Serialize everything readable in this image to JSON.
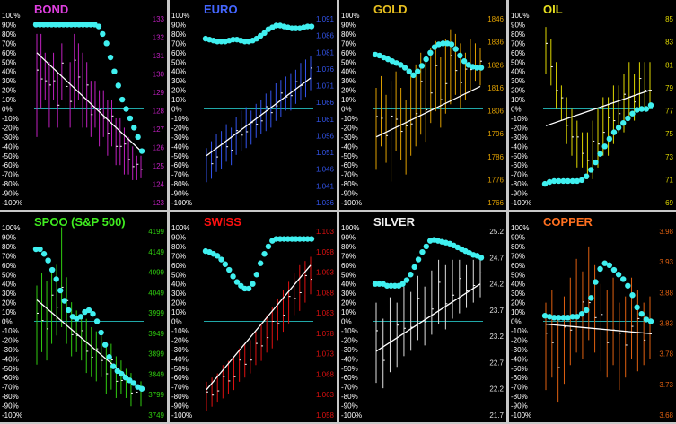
{
  "chart_data": [
    {
      "type": "bar",
      "title": "BOND",
      "title_color": "#e040e0",
      "bar_color": "#c020c0",
      "pct_ticks": [
        "100%",
        "90%",
        "80%",
        "70%",
        "60%",
        "50%",
        "40%",
        "30%",
        "20%",
        "10%",
        "0%",
        "-10%",
        "-20%",
        "-30%",
        "-40%",
        "-50%",
        "-60%",
        "-70%",
        "-80%",
        "-90%",
        "-100%"
      ],
      "right_ticks": [
        "133",
        "132",
        "131",
        "130",
        "129",
        "128",
        "127",
        "126",
        "125",
        "124",
        "123"
      ],
      "price_range": [
        123,
        133
      ],
      "bars": [
        [
          126.5,
          132
        ],
        [
          128,
          132
        ],
        [
          128.5,
          131
        ],
        [
          127,
          130.5
        ],
        [
          128.5,
          131
        ],
        [
          127,
          130
        ],
        [
          128.5,
          131.5
        ],
        [
          128,
          131
        ],
        [
          127,
          130.5
        ],
        [
          128,
          132
        ],
        [
          128.5,
          131.5
        ],
        [
          127,
          131
        ],
        [
          127,
          130.5
        ],
        [
          126.5,
          129.5
        ],
        [
          127,
          129.5
        ],
        [
          126,
          129
        ],
        [
          126.5,
          129
        ],
        [
          125.5,
          128.5
        ],
        [
          126,
          128.5
        ],
        [
          125,
          127.5
        ],
        [
          125,
          127.5
        ],
        [
          124.5,
          127
        ],
        [
          124.5,
          126.5
        ],
        [
          124.2,
          126
        ],
        [
          124.2,
          125.5
        ],
        [
          124.3,
          125.5
        ]
      ],
      "trend_pct": [
        60,
        -45
      ],
      "dots_pct": [
        90,
        90,
        90,
        90,
        90,
        90,
        90,
        90,
        90,
        90,
        90,
        90,
        90,
        90,
        90,
        90,
        88,
        80,
        70,
        55,
        40,
        25,
        10,
        0,
        -10,
        -20,
        -30,
        -45
      ]
    },
    {
      "type": "bar",
      "title": "EURO",
      "title_color": "#4466ff",
      "bar_color": "#3355ee",
      "pct_ticks": [
        "100%",
        "90%",
        "80%",
        "70%",
        "60%",
        "50%",
        "40%",
        "30%",
        "20%",
        "10%",
        "0%",
        "-10%",
        "-20%",
        "-30%",
        "-40%",
        "-50%",
        "-60%",
        "-70%",
        "-80%",
        "-90%",
        "-100%"
      ],
      "right_ticks": [
        "1.091",
        "1.086",
        "1.081",
        "1.076",
        "1.071",
        "1.066",
        "1.061",
        "1.056",
        "1.051",
        "1.046",
        "1.041",
        "1.036"
      ],
      "price_range": [
        1.036,
        1.091
      ],
      "bars": [
        [
          1.042,
          1.052
        ],
        [
          1.043,
          1.054
        ],
        [
          1.045,
          1.056
        ],
        [
          1.046,
          1.057
        ],
        [
          1.048,
          1.059
        ],
        [
          1.047,
          1.058
        ],
        [
          1.05,
          1.061
        ],
        [
          1.051,
          1.063
        ],
        [
          1.052,
          1.064
        ],
        [
          1.053,
          1.063
        ],
        [
          1.055,
          1.065
        ],
        [
          1.056,
          1.066
        ],
        [
          1.057,
          1.068
        ],
        [
          1.058,
          1.069
        ],
        [
          1.06,
          1.071
        ],
        [
          1.061,
          1.072
        ],
        [
          1.063,
          1.073
        ],
        [
          1.063,
          1.074
        ],
        [
          1.065,
          1.075
        ],
        [
          1.066,
          1.077
        ],
        [
          1.067,
          1.078
        ],
        [
          1.069,
          1.079
        ]
      ],
      "trend_pct": [
        -50,
        33
      ],
      "dots_pct": [
        75,
        74,
        73,
        72,
        72,
        72,
        73,
        74,
        74,
        73,
        72,
        72,
        73,
        75,
        78,
        81,
        85,
        87,
        89,
        89,
        88,
        87,
        86,
        86,
        86,
        87,
        88,
        88
      ]
    },
    {
      "type": "bar",
      "title": "GOLD",
      "title_color": "#e8c020",
      "bar_color": "#e0a000",
      "pct_ticks": [
        "100%",
        "90%",
        "80%",
        "70%",
        "60%",
        "50%",
        "40%",
        "30%",
        "20%",
        "10%",
        "0%",
        "-10%",
        "-20%",
        "-30%",
        "-40%",
        "-50%",
        "-60%",
        "-70%",
        "-80%",
        "-90%",
        "-100%"
      ],
      "right_ticks": [
        "1846",
        "1836",
        "1826",
        "1816",
        "1806",
        "1796",
        "1786",
        "1776",
        "1766"
      ],
      "price_range": [
        1766,
        1846
      ],
      "bars": [
        [
          1780,
          1815
        ],
        [
          1790,
          1820
        ],
        [
          1783,
          1812
        ],
        [
          1775,
          1818
        ],
        [
          1788,
          1822
        ],
        [
          1784,
          1815
        ],
        [
          1778,
          1810
        ],
        [
          1786,
          1820
        ],
        [
          1790,
          1825
        ],
        [
          1795,
          1830
        ],
        [
          1792,
          1826
        ],
        [
          1800,
          1832
        ],
        [
          1805,
          1835
        ],
        [
          1798,
          1828
        ],
        [
          1804,
          1836
        ],
        [
          1808,
          1840
        ],
        [
          1812,
          1838
        ],
        [
          1806,
          1834
        ],
        [
          1810,
          1830
        ],
        [
          1814,
          1836
        ],
        [
          1818,
          1834
        ],
        [
          1816,
          1832
        ]
      ],
      "trend_pct": [
        -30,
        24
      ],
      "dots_pct": [
        58,
        57,
        55,
        53,
        51,
        49,
        47,
        44,
        40,
        36,
        40,
        46,
        53,
        60,
        66,
        69,
        70,
        70,
        69,
        64,
        57,
        51,
        47,
        45,
        44,
        44
      ]
    },
    {
      "type": "bar",
      "title": "OIL",
      "title_color": "#e8e020",
      "bar_color": "#e0d800",
      "pct_ticks": [
        "100%",
        "90%",
        "80%",
        "70%",
        "60%",
        "50%",
        "40%",
        "30%",
        "20%",
        "10%",
        "0%",
        "-10%",
        "-20%",
        "-30%",
        "-40%",
        "-50%",
        "-60%",
        "-70%",
        "-80%",
        "-90%",
        "-100%"
      ],
      "right_ticks": [
        "85",
        "83",
        "81",
        "79",
        "77",
        "75",
        "73",
        "71",
        "69"
      ],
      "price_range": [
        69,
        85
      ],
      "bars": [
        [
          80,
          84
        ],
        [
          79,
          83
        ],
        [
          77,
          81
        ],
        [
          76,
          79
        ],
        [
          74,
          78
        ],
        [
          73,
          77
        ],
        [
          72,
          76
        ],
        [
          72,
          75
        ],
        [
          71,
          75
        ],
        [
          71,
          76
        ],
        [
          72,
          77
        ],
        [
          73,
          78
        ],
        [
          73,
          78
        ],
        [
          74,
          79
        ],
        [
          75,
          79
        ],
        [
          75,
          80
        ],
        [
          76,
          81
        ],
        [
          76,
          80
        ],
        [
          77,
          81
        ],
        [
          77,
          81
        ],
        [
          77,
          81
        ]
      ],
      "trend_pct": [
        -18,
        20
      ],
      "dots_pct": [
        -80,
        -78,
        -77,
        -77,
        -77,
        -77,
        -77,
        -77,
        -76,
        -72,
        -65,
        -57,
        -48,
        -40,
        -32,
        -25,
        -20,
        -15,
        -10,
        -5,
        -1,
        0,
        0,
        4
      ]
    },
    {
      "type": "bar",
      "title": "SPOO (S&P 500)",
      "title_color": "#40ee20",
      "bar_color": "#30cc10",
      "pct_ticks": [
        "100%",
        "90%",
        "80%",
        "70%",
        "60%",
        "50%",
        "40%",
        "30%",
        "20%",
        "10%",
        "0%",
        "-10%",
        "-20%",
        "-30%",
        "-40%",
        "-50%",
        "-60%",
        "-70%",
        "-80%",
        "-90%",
        "-100%"
      ],
      "right_ticks": [
        "4199",
        "4149",
        "4099",
        "4049",
        "3999",
        "3949",
        "3899",
        "3849",
        "3799",
        "3749"
      ],
      "price_range": [
        3749,
        4199
      ],
      "bars": [
        [
          3870,
          4060
        ],
        [
          3900,
          4090
        ],
        [
          3880,
          4070
        ],
        [
          3920,
          4100
        ],
        [
          3940,
          4110
        ],
        [
          3960,
          4200
        ],
        [
          3920,
          4080
        ],
        [
          3890,
          4020
        ],
        [
          3900,
          4000
        ],
        [
          3880,
          3990
        ],
        [
          3850,
          3980
        ],
        [
          3840,
          3960
        ],
        [
          3830,
          3950
        ],
        [
          3840,
          3940
        ],
        [
          3800,
          3920
        ],
        [
          3810,
          3920
        ],
        [
          3790,
          3890
        ],
        [
          3800,
          3880
        ],
        [
          3790,
          3860
        ],
        [
          3770,
          3850
        ],
        [
          3780,
          3840
        ],
        [
          3770,
          3830
        ]
      ],
      "trend_pct": [
        23,
        -72
      ],
      "dots_pct": [
        77,
        77,
        72,
        65,
        55,
        45,
        33,
        22,
        12,
        5,
        3,
        5,
        10,
        12,
        8,
        0,
        -12,
        -25,
        -38,
        -48,
        -53,
        -56,
        -60,
        -63,
        -66,
        -70,
        -72
      ]
    },
    {
      "type": "bar",
      "title": "SWISS",
      "title_color": "#ff1010",
      "bar_color": "#e01010",
      "pct_ticks": [
        "100%",
        "90%",
        "80%",
        "70%",
        "60%",
        "50%",
        "40%",
        "30%",
        "20%",
        "10%",
        "0%",
        "-10%",
        "-20%",
        "-30%",
        "-40%",
        "-50%",
        "-60%",
        "-70%",
        "-80%",
        "-90%",
        "-100%"
      ],
      "right_ticks": [
        "1.103",
        "1.098",
        "1.093",
        "1.088",
        "1.083",
        "1.078",
        "1.073",
        "1.068",
        "1.063",
        "1.058"
      ],
      "price_range": [
        1.058,
        1.103
      ],
      "bars": [
        [
          1.059,
          1.066
        ],
        [
          1.06,
          1.067
        ],
        [
          1.061,
          1.068
        ],
        [
          1.062,
          1.07
        ],
        [
          1.063,
          1.071
        ],
        [
          1.064,
          1.072
        ],
        [
          1.066,
          1.074
        ],
        [
          1.067,
          1.075
        ],
        [
          1.068,
          1.076
        ],
        [
          1.07,
          1.078
        ],
        [
          1.071,
          1.08
        ],
        [
          1.073,
          1.082
        ],
        [
          1.074,
          1.084
        ],
        [
          1.076,
          1.086
        ],
        [
          1.078,
          1.088
        ],
        [
          1.08,
          1.09
        ],
        [
          1.082,
          1.092
        ],
        [
          1.083,
          1.094
        ],
        [
          1.085,
          1.095
        ],
        [
          1.087,
          1.096
        ]
      ],
      "trend_pct": [
        -73,
        60
      ],
      "dots_pct": [
        75,
        74,
        72,
        70,
        66,
        61,
        55,
        48,
        42,
        38,
        35,
        35,
        40,
        50,
        62,
        72,
        80,
        86,
        88,
        88,
        88,
        88,
        88,
        88,
        88,
        88,
        88,
        88
      ]
    },
    {
      "type": "bar",
      "title": "SILVER",
      "title_color": "#f0f0f0",
      "bar_color": "#e0e0e0",
      "pct_ticks": [
        "100%",
        "90%",
        "80%",
        "70%",
        "60%",
        "50%",
        "40%",
        "30%",
        "20%",
        "10%",
        "0%",
        "-10%",
        "-20%",
        "-30%",
        "-40%",
        "-50%",
        "-60%",
        "-70%",
        "-80%",
        "-90%",
        "-100%"
      ],
      "right_ticks": [
        "25.2",
        "24.7",
        "24.2",
        "23.7",
        "23.2",
        "22.7",
        "22.2",
        "21.7"
      ],
      "price_range": [
        21.7,
        25.2
      ],
      "bars": [
        [
          22.3,
          23.8
        ],
        [
          22.2,
          23.5
        ],
        [
          22.5,
          23.9
        ],
        [
          22.6,
          23.8
        ],
        [
          22.8,
          24.1
        ],
        [
          22.9,
          24.0
        ],
        [
          23.1,
          24.3
        ],
        [
          23.0,
          24.1
        ],
        [
          23.2,
          24.4
        ],
        [
          23.4,
          24.6
        ],
        [
          23.3,
          24.5
        ],
        [
          23.5,
          24.6
        ],
        [
          23.6,
          24.6
        ],
        [
          23.7,
          24.5
        ],
        [
          23.8,
          24.6
        ],
        [
          23.9,
          24.6
        ]
      ],
      "trend_pct": [
        -32,
        40
      ],
      "dots_pct": [
        40,
        40,
        40,
        38,
        38,
        38,
        38,
        40,
        44,
        50,
        58,
        66,
        74,
        80,
        86,
        87,
        86,
        85,
        84,
        83,
        81,
        79,
        77,
        75,
        73,
        71,
        70,
        68
      ]
    },
    {
      "type": "bar",
      "title": "COPPER",
      "title_color": "#ff7020",
      "bar_color": "#e06010",
      "pct_ticks": [
        "100%",
        "90%",
        "80%",
        "70%",
        "60%",
        "50%",
        "40%",
        "30%",
        "20%",
        "10%",
        "0%",
        "-10%",
        "-20%",
        "-30%",
        "-40%",
        "-50%",
        "-60%",
        "-70%",
        "-80%",
        "-90%",
        "-100%"
      ],
      "right_ticks": [
        "3.98",
        "3.93",
        "3.88",
        "3.83",
        "3.78",
        "3.73",
        "3.68"
      ],
      "price_range": [
        3.68,
        3.98
      ],
      "bars": [
        [
          3.72,
          3.86
        ],
        [
          3.74,
          3.88
        ],
        [
          3.7,
          3.84
        ],
        [
          3.73,
          3.87
        ],
        [
          3.76,
          3.9
        ],
        [
          3.78,
          3.93
        ],
        [
          3.77,
          3.91
        ],
        [
          3.8,
          3.95
        ],
        [
          3.78,
          3.92
        ],
        [
          3.75,
          3.89
        ],
        [
          3.74,
          3.88
        ],
        [
          3.76,
          3.9
        ],
        [
          3.72,
          3.86
        ],
        [
          3.74,
          3.87
        ],
        [
          3.77,
          3.9
        ],
        [
          3.75,
          3.88
        ],
        [
          3.76,
          3.86
        ],
        [
          3.77,
          3.87
        ]
      ],
      "trend_pct": [
        -3,
        -13
      ],
      "dots_pct": [
        6,
        5,
        4,
        4,
        4,
        4,
        5,
        5,
        8,
        12,
        25,
        42,
        56,
        62,
        60,
        55,
        50,
        45,
        38,
        28,
        15,
        8,
        2,
        0
      ]
    }
  ]
}
